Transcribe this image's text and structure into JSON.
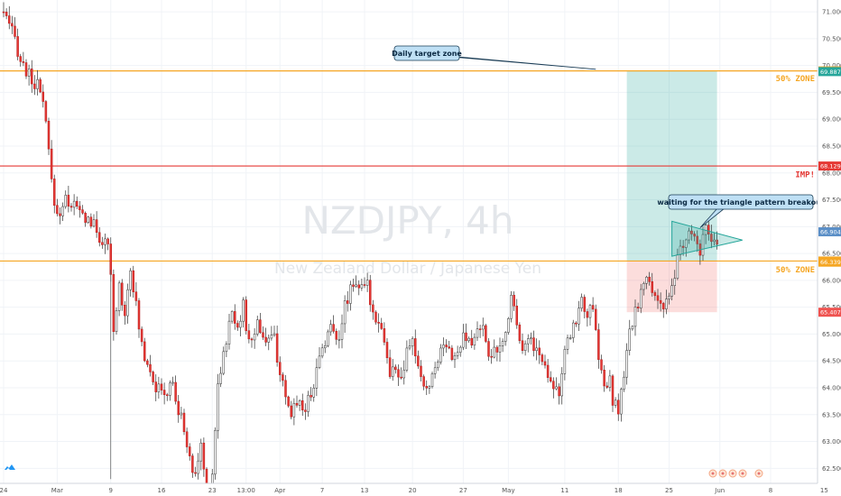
{
  "chart_data": {
    "type": "candlestick",
    "watermark_symbol": "NZDJPY, 4h",
    "watermark_name": "New Zealand Dollar / Japanese Yen",
    "y_axis": {
      "range": [
        62.22,
        71.22
      ],
      "ticks": [
        "71.000",
        "70.500",
        "70.000",
        "69.500",
        "69.000",
        "68.500",
        "68.000",
        "67.500",
        "67.000",
        "66.500",
        "66.000",
        "65.500",
        "65.000",
        "64.500",
        "64.000",
        "63.500",
        "63.000",
        "62.500"
      ]
    },
    "x_axis": {
      "ticks": [
        {
          "label": "24",
          "i": 0
        },
        {
          "label": "Mar",
          "i": 19
        },
        {
          "label": "9",
          "i": 38
        },
        {
          "label": "16",
          "i": 56
        },
        {
          "label": "23",
          "i": 74
        },
        {
          "label": "13:00",
          "i": 86
        },
        {
          "label": "Apr",
          "i": 98
        },
        {
          "label": "7",
          "i": 113
        },
        {
          "label": "13",
          "i": 128
        },
        {
          "label": "20",
          "i": 145
        },
        {
          "label": "27",
          "i": 163
        },
        {
          "label": "May",
          "i": 179
        },
        {
          "label": "11",
          "i": 199
        },
        {
          "label": "18",
          "i": 218
        },
        {
          "label": "25",
          "i": 236
        },
        {
          "label": "Jun",
          "i": 254
        },
        {
          "label": "8",
          "i": 272
        },
        {
          "label": "15",
          "i": 291
        }
      ]
    },
    "anchors": [
      [
        0,
        71.0
      ],
      [
        2,
        70.7
      ],
      [
        4,
        70.5
      ],
      [
        6,
        70.1
      ],
      [
        9,
        69.8
      ],
      [
        12,
        69.6
      ],
      [
        14,
        69.3
      ],
      [
        16,
        68.4
      ],
      [
        17,
        67.8
      ],
      [
        19,
        67.2
      ],
      [
        22,
        67.5
      ],
      [
        25,
        67.4
      ],
      [
        28,
        67.2
      ],
      [
        31,
        67.1
      ],
      [
        34,
        66.8
      ],
      [
        37,
        66.6
      ],
      [
        38,
        66.0
      ],
      [
        39,
        65.0
      ],
      [
        41,
        65.9
      ],
      [
        43,
        65.4
      ],
      [
        45,
        66.3
      ],
      [
        46,
        65.9
      ],
      [
        48,
        65.1
      ],
      [
        50,
        64.6
      ],
      [
        52,
        64.4
      ],
      [
        54,
        64.0
      ],
      [
        56,
        63.9
      ],
      [
        58,
        63.9
      ],
      [
        60,
        64.1
      ],
      [
        62,
        63.5
      ],
      [
        64,
        63.3
      ],
      [
        66,
        62.6
      ],
      [
        68,
        62.4
      ],
      [
        70,
        62.9
      ],
      [
        72,
        62.1
      ],
      [
        74,
        62.4
      ],
      [
        76,
        64.1
      ],
      [
        79,
        64.9
      ],
      [
        81,
        65.4
      ],
      [
        83,
        65.2
      ],
      [
        85,
        65.5
      ],
      [
        87,
        64.8
      ],
      [
        90,
        65.2
      ],
      [
        93,
        64.9
      ],
      [
        96,
        64.9
      ],
      [
        98,
        64.3
      ],
      [
        100,
        63.7
      ],
      [
        102,
        63.5
      ],
      [
        104,
        63.8
      ],
      [
        107,
        63.6
      ],
      [
        110,
        64.1
      ],
      [
        113,
        64.8
      ],
      [
        116,
        65.1
      ],
      [
        119,
        65.0
      ],
      [
        121,
        65.5
      ],
      [
        123,
        65.9
      ],
      [
        125,
        66.0
      ],
      [
        127,
        65.8
      ],
      [
        129,
        65.9
      ],
      [
        131,
        65.4
      ],
      [
        133,
        65.3
      ],
      [
        135,
        64.9
      ],
      [
        137,
        64.2
      ],
      [
        139,
        64.4
      ],
      [
        141,
        64.1
      ],
      [
        143,
        64.6
      ],
      [
        145,
        64.9
      ],
      [
        148,
        64.1
      ],
      [
        151,
        64.0
      ],
      [
        154,
        64.6
      ],
      [
        157,
        64.9
      ],
      [
        160,
        64.5
      ],
      [
        163,
        64.9
      ],
      [
        166,
        64.8
      ],
      [
        169,
        65.2
      ],
      [
        172,
        64.7
      ],
      [
        175,
        64.6
      ],
      [
        178,
        65.0
      ],
      [
        180,
        65.8
      ],
      [
        182,
        65.2
      ],
      [
        184,
        64.8
      ],
      [
        187,
        64.9
      ],
      [
        190,
        64.6
      ],
      [
        193,
        64.3
      ],
      [
        195,
        64.1
      ],
      [
        197,
        63.9
      ],
      [
        199,
        64.6
      ],
      [
        201,
        65.0
      ],
      [
        203,
        65.3
      ],
      [
        205,
        65.6
      ],
      [
        207,
        65.4
      ],
      [
        209,
        65.4
      ],
      [
        211,
        64.6
      ],
      [
        213,
        64.0
      ],
      [
        215,
        64.1
      ],
      [
        216,
        63.7
      ],
      [
        218,
        63.6
      ],
      [
        220,
        64.2
      ],
      [
        222,
        65.0
      ],
      [
        224,
        65.4
      ],
      [
        226,
        65.8
      ],
      [
        228,
        66.0
      ],
      [
        230,
        65.8
      ],
      [
        232,
        65.7
      ],
      [
        234,
        65.5
      ],
      [
        236,
        65.6
      ],
      [
        238,
        66.0
      ],
      [
        239,
        66.5
      ],
      [
        241,
        66.6
      ],
      [
        243,
        66.9
      ],
      [
        245,
        66.7
      ],
      [
        247,
        66.6
      ],
      [
        249,
        66.9
      ],
      [
        251,
        66.7
      ],
      [
        253,
        66.7
      ]
    ],
    "levels": [
      {
        "name": "daily-target",
        "price": 69.9,
        "color": "#f5a623",
        "label": "",
        "tag": "69.900"
      },
      {
        "name": "imp",
        "price": 68.129,
        "color": "#e53935",
        "label": "IMP!",
        "tag": "68.129"
      },
      {
        "name": "fifty-zone-lower",
        "price": 66.36,
        "color": "#f5a623",
        "label": "50% ZONE",
        "tag": "66.360"
      }
    ],
    "price_tags": [
      {
        "name": "tag-target",
        "price": 69.887,
        "text": "69.887",
        "color": "#26a69a"
      },
      {
        "name": "tag-current",
        "price": 66.904,
        "text": "66.904",
        "color": "#5b8fc7"
      },
      {
        "name": "tag-fifty",
        "price": 66.339,
        "text": "66.339",
        "color": "#f5a623"
      },
      {
        "name": "tag-stop",
        "price": 65.407,
        "text": "65.407",
        "color": "#ef5350"
      }
    ],
    "zone_labels": [
      {
        "name": "fifty-zone-upper-label",
        "price": 69.78,
        "text": "50% ZONE",
        "color": "#f5a623"
      },
      {
        "name": "imp-label",
        "price": 67.99,
        "text": "IMP!",
        "color": "#e53935"
      },
      {
        "name": "fifty-zone-lower-label",
        "price": 66.22,
        "text": "50% ZONE",
        "color": "#f5a623"
      }
    ],
    "position": {
      "start_i": 221,
      "end_i": 253,
      "target": 69.9,
      "entry": 66.36,
      "stop": 65.407,
      "profit_color": "#26a69a",
      "loss_color": "#ef5350"
    },
    "triangle": {
      "upper_start": [
        237,
        67.1
      ],
      "apex": [
        262,
        66.75
      ],
      "lower_start": [
        237,
        66.45
      ],
      "color": "#26a69a"
    },
    "callouts": [
      {
        "name": "daily-target-callout",
        "text": "Daily target zone",
        "anchor_i": 210,
        "anchor_price": 69.93
      },
      {
        "name": "triangle-callout",
        "text": "waiting for the triangle pattern breakout",
        "anchor_i": 247,
        "anchor_price": 66.98
      }
    ]
  },
  "colors": {
    "up_candle": "#ffffff",
    "down_candle": "#e53935",
    "wick": "#333333",
    "grid": "#f0f3f7",
    "callout_fill": "#bfe0f5",
    "callout_stroke": "#1a3c55"
  },
  "icons": {
    "logo": "tradingview-logo-icon",
    "ideas": "idea-markers-icon"
  }
}
